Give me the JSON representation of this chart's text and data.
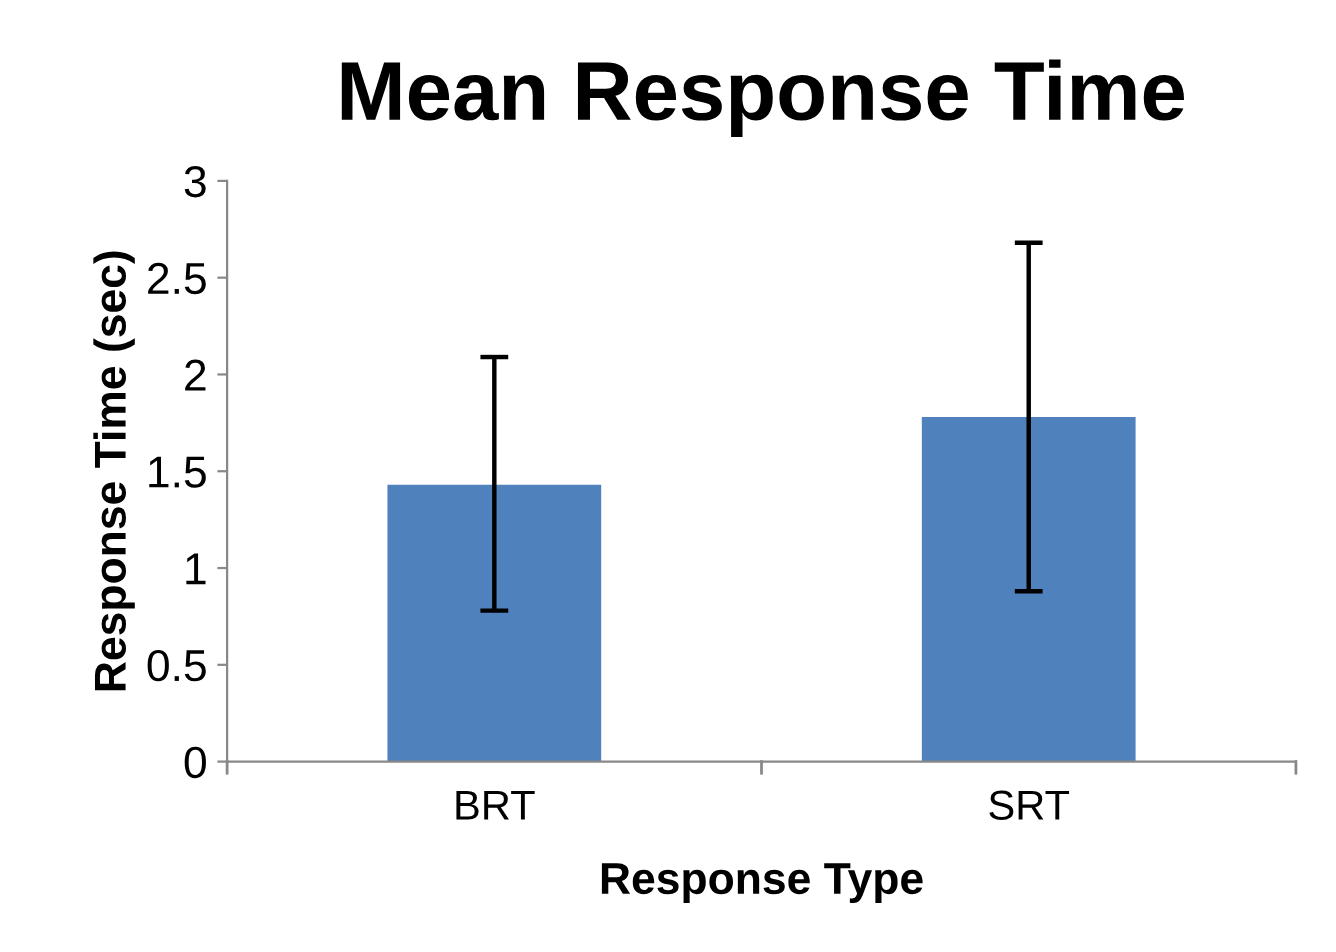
{
  "chart_data": {
    "type": "bar",
    "title": "Mean Response Time",
    "xlabel": "Response Type",
    "ylabel": "Response Time (sec)",
    "categories": [
      "BRT",
      "SRT"
    ],
    "values": [
      1.43,
      1.78
    ],
    "errors": [
      [
        0.78,
        2.09
      ],
      [
        0.88,
        2.68
      ]
    ],
    "color": "#4f81bd",
    "ylim": [
      0,
      3
    ],
    "yticks": [
      0,
      0.5,
      1,
      1.5,
      2,
      2.5,
      3
    ],
    "grid": false,
    "legend": false
  }
}
